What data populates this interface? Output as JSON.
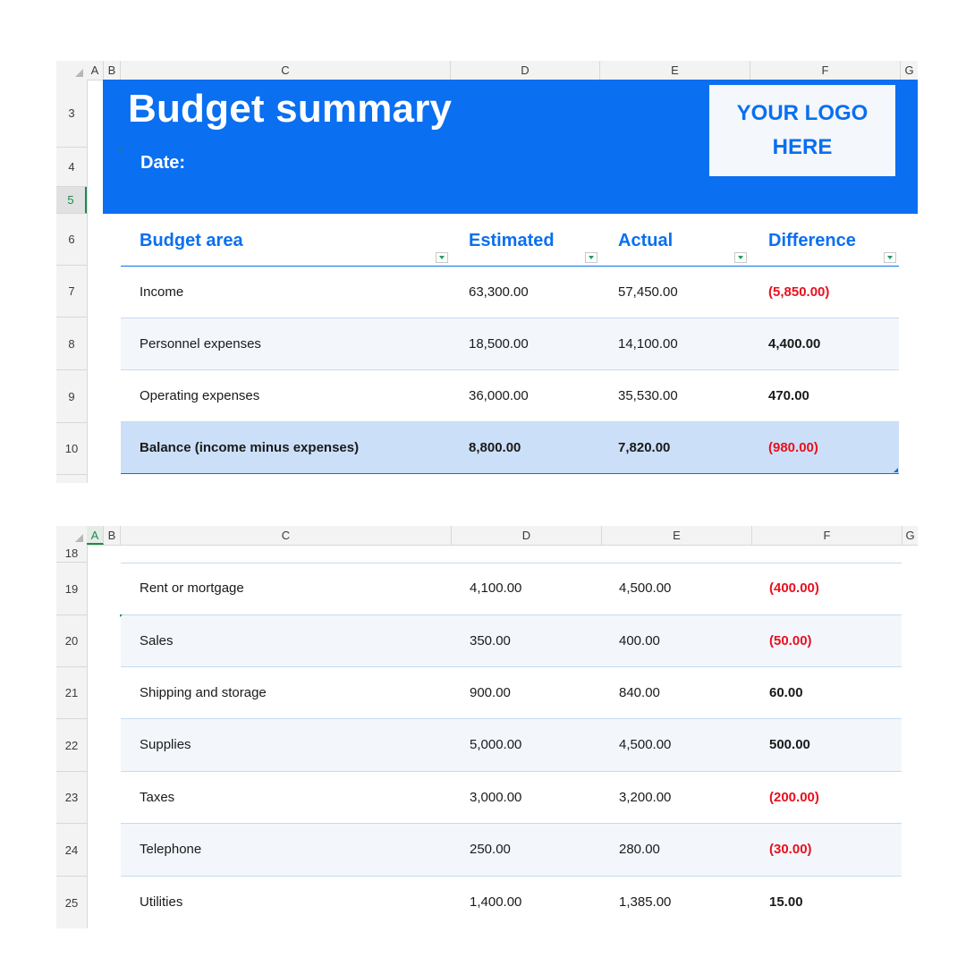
{
  "columns": [
    "A",
    "B",
    "C",
    "D",
    "E",
    "F",
    "G"
  ],
  "sheet1": {
    "rows": [
      "3",
      "4",
      "5",
      "6",
      "7",
      "8",
      "9",
      "10"
    ],
    "selected_row": "5",
    "title": "Budget summary",
    "date_label": "Date:",
    "logo_line1": "YOUR LOGO",
    "logo_line2": "HERE",
    "headers": {
      "area": "Budget area",
      "estimated": "Estimated",
      "actual": "Actual",
      "difference": "Difference"
    },
    "items": [
      {
        "area": "Income",
        "estimated": "63,300.00",
        "actual": "57,450.00",
        "difference": "(5,850.00)",
        "negative": true
      },
      {
        "area": "Personnel expenses",
        "estimated": "18,500.00",
        "actual": "14,100.00",
        "difference": "4,400.00",
        "negative": false
      },
      {
        "area": "Operating expenses",
        "estimated": "36,000.00",
        "actual": "35,530.00",
        "difference": "470.00",
        "negative": false
      }
    ],
    "balance": {
      "area": "Balance (income minus expenses)",
      "estimated": "8,800.00",
      "actual": "7,820.00",
      "difference": "(980.00)",
      "negative": true
    }
  },
  "sheet2": {
    "selected_column": "A",
    "rows": [
      "18",
      "19",
      "20",
      "21",
      "22",
      "23",
      "24",
      "25"
    ],
    "items": [
      {
        "area": "Rent or mortgage",
        "estimated": "4,100.00",
        "actual": "4,500.00",
        "difference": "(400.00)",
        "negative": true
      },
      {
        "area": "Sales",
        "estimated": "350.00",
        "actual": "400.00",
        "difference": "(50.00)",
        "negative": true
      },
      {
        "area": "Shipping and storage",
        "estimated": "900.00",
        "actual": "840.00",
        "difference": "60.00",
        "negative": false
      },
      {
        "area": "Supplies",
        "estimated": "5,000.00",
        "actual": "4,500.00",
        "difference": "500.00",
        "negative": false
      },
      {
        "area": "Taxes",
        "estimated": "3,000.00",
        "actual": "3,200.00",
        "difference": "(200.00)",
        "negative": true
      },
      {
        "area": "Telephone",
        "estimated": "250.00",
        "actual": "280.00",
        "difference": "(30.00)",
        "negative": true
      },
      {
        "area": "Utilities",
        "estimated": "1,400.00",
        "actual": "1,385.00",
        "difference": "15.00",
        "negative": false
      }
    ]
  },
  "colors": {
    "accent": "#0a6ff0",
    "negative": "#e8101e",
    "selection": "#1e8a4c"
  }
}
